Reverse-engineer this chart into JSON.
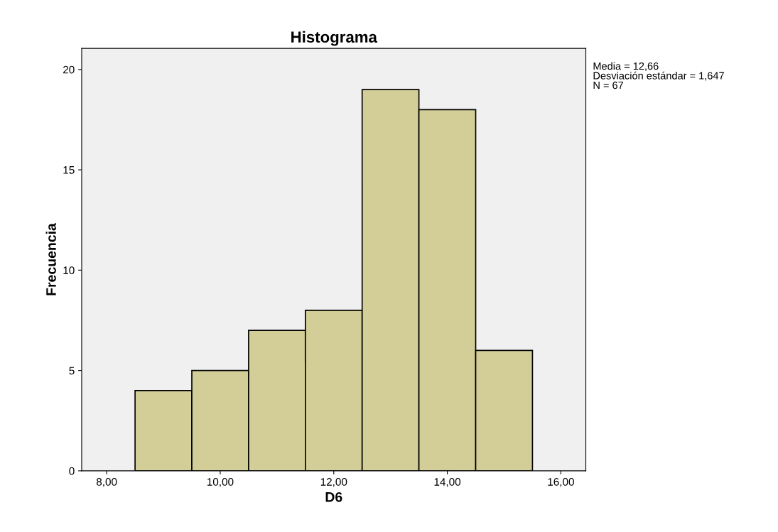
{
  "chart_data": {
    "type": "histogram",
    "title": "Histograma",
    "xlabel": "D6",
    "ylabel": "Frecuencia",
    "bins": [
      8.5,
      9.5,
      10.5,
      11.5,
      12.5,
      13.5,
      14.5,
      15.5
    ],
    "values": [
      4,
      5,
      7,
      8,
      19,
      18,
      6
    ],
    "color": "#d3ce97",
    "xlim": [
      7.56,
      16.44
    ],
    "ylim": [
      0,
      21.05
    ],
    "xticks": [
      {
        "value": 8,
        "label": "8,00"
      },
      {
        "value": 10,
        "label": "10,00"
      },
      {
        "value": 12,
        "label": "12,00"
      },
      {
        "value": 14,
        "label": "14,00"
      },
      {
        "value": 16,
        "label": "16,00"
      }
    ],
    "yticks": [
      0,
      5,
      10,
      15,
      20
    ],
    "grid": false,
    "annotations": [
      "Media = 12,66",
      "Desviación estándar = 1,647",
      "N = 67"
    ]
  }
}
